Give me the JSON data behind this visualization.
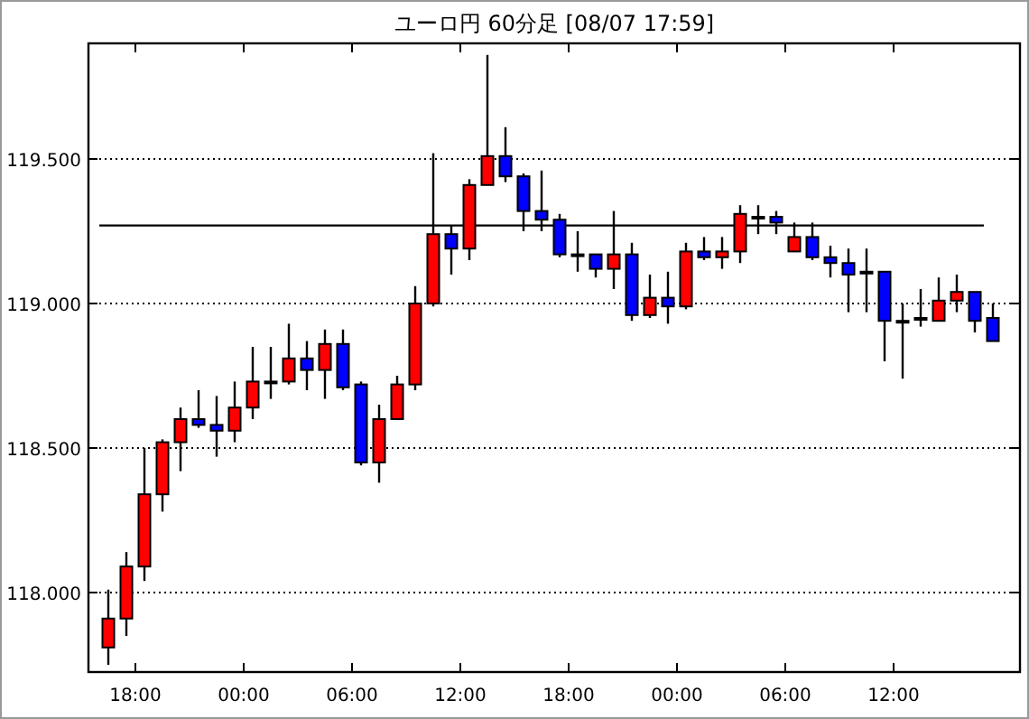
{
  "chart_data": {
    "type": "candlestick",
    "title": "ユーロ円 60分足 [08/07 17:59]",
    "x": [
      "--08-05T16:30",
      "--08-05T17:30",
      "--08-05T18:30",
      "--08-05T19:30",
      "--08-05T20:30",
      "--08-05T21:30",
      "--08-05T22:30",
      "--08-05T23:30",
      "--08-06T00:30",
      "--08-06T01:30",
      "--08-06T02:30",
      "--08-06T03:30",
      "--08-06T04:30",
      "--08-06T05:30",
      "--08-06T06:30",
      "--08-06T07:30",
      "--08-06T08:30",
      "--08-06T09:30",
      "--08-06T10:30",
      "--08-06T11:30",
      "--08-06T12:30",
      "--08-06T13:30",
      "--08-06T14:30",
      "--08-06T15:30",
      "--08-06T16:30",
      "--08-06T17:30",
      "--08-06T18:30",
      "--08-06T19:30",
      "--08-06T20:30",
      "--08-06T21:30",
      "--08-06T22:30",
      "--08-06T23:30",
      "--08-07T00:30",
      "--08-07T01:30",
      "--08-07T02:30",
      "--08-07T03:30",
      "--08-07T04:30",
      "--08-07T05:30",
      "--08-07T06:30",
      "--08-07T07:30",
      "--08-07T08:30",
      "--08-07T09:30",
      "--08-07T10:30",
      "--08-07T11:30",
      "--08-07T12:30",
      "--08-07T13:30",
      "--08-07T14:30",
      "--08-07T15:30",
      "--08-07T16:30",
      "--08-07T17:30"
    ],
    "ohlc": [
      [
        117.81,
        118.01,
        117.75,
        117.91
      ],
      [
        117.91,
        118.14,
        117.85,
        118.09
      ],
      [
        118.09,
        118.5,
        118.04,
        118.34
      ],
      [
        118.34,
        118.53,
        118.28,
        118.52
      ],
      [
        118.52,
        118.64,
        118.42,
        118.6
      ],
      [
        118.6,
        118.7,
        118.57,
        118.58
      ],
      [
        118.58,
        118.68,
        118.47,
        118.56
      ],
      [
        118.56,
        118.73,
        118.52,
        118.64
      ],
      [
        118.64,
        118.85,
        118.6,
        118.73
      ],
      [
        118.73,
        118.85,
        118.67,
        118.73
      ],
      [
        118.73,
        118.93,
        118.72,
        118.81
      ],
      [
        118.81,
        118.87,
        118.7,
        118.77
      ],
      [
        118.77,
        118.91,
        118.67,
        118.86
      ],
      [
        118.86,
        118.91,
        118.7,
        118.71
      ],
      [
        118.72,
        118.73,
        118.44,
        118.45
      ],
      [
        118.45,
        118.65,
        118.38,
        118.6
      ],
      [
        118.6,
        118.75,
        118.6,
        118.72
      ],
      [
        118.72,
        119.06,
        118.7,
        119.0
      ],
      [
        119.0,
        119.52,
        118.99,
        119.24
      ],
      [
        119.24,
        119.27,
        119.1,
        119.19
      ],
      [
        119.19,
        119.43,
        119.15,
        119.41
      ],
      [
        119.41,
        119.86,
        119.41,
        119.51
      ],
      [
        119.51,
        119.61,
        119.42,
        119.44
      ],
      [
        119.44,
        119.45,
        119.25,
        119.32
      ],
      [
        119.32,
        119.46,
        119.25,
        119.29
      ],
      [
        119.29,
        119.31,
        119.16,
        119.17
      ],
      [
        119.17,
        119.25,
        119.11,
        119.17
      ],
      [
        119.17,
        119.17,
        119.09,
        119.12
      ],
      [
        119.12,
        119.32,
        119.05,
        119.17
      ],
      [
        119.17,
        119.21,
        118.94,
        118.96
      ],
      [
        118.96,
        119.1,
        118.95,
        119.02
      ],
      [
        119.02,
        119.11,
        118.93,
        118.99
      ],
      [
        118.99,
        119.21,
        118.98,
        119.18
      ],
      [
        119.18,
        119.23,
        119.15,
        119.16
      ],
      [
        119.16,
        119.23,
        119.12,
        119.18
      ],
      [
        119.18,
        119.34,
        119.14,
        119.31
      ],
      [
        119.3,
        119.34,
        119.24,
        119.3
      ],
      [
        119.3,
        119.32,
        119.24,
        119.28
      ],
      [
        119.18,
        119.28,
        119.18,
        119.23
      ],
      [
        119.23,
        119.28,
        119.15,
        119.16
      ],
      [
        119.16,
        119.2,
        119.09,
        119.14
      ],
      [
        119.14,
        119.19,
        118.97,
        119.1
      ],
      [
        119.11,
        119.19,
        118.97,
        119.11
      ],
      [
        119.11,
        119.11,
        118.8,
        118.94
      ],
      [
        118.94,
        119.0,
        118.74,
        118.94
      ],
      [
        118.95,
        119.05,
        118.92,
        118.95
      ],
      [
        118.94,
        119.09,
        118.94,
        119.01
      ],
      [
        119.01,
        119.1,
        118.97,
        119.04
      ],
      [
        119.04,
        119.04,
        118.9,
        118.94
      ],
      [
        118.95,
        119.0,
        118.87,
        118.87
      ]
    ],
    "colors": [
      "#ff0000",
      "#ff0000",
      "#ff0000",
      "#ff0000",
      "#ff0000",
      "#0000ff",
      "#0000ff",
      "#ff0000",
      "#ff0000",
      "#000000",
      "#ff0000",
      "#0000ff",
      "#ff0000",
      "#0000ff",
      "#0000ff",
      "#ff0000",
      "#ff0000",
      "#ff0000",
      "#ff0000",
      "#0000ff",
      "#ff0000",
      "#ff0000",
      "#0000ff",
      "#0000ff",
      "#0000ff",
      "#0000ff",
      "#000000",
      "#0000ff",
      "#ff0000",
      "#0000ff",
      "#ff0000",
      "#0000ff",
      "#ff0000",
      "#0000ff",
      "#ff0000",
      "#ff0000",
      "#000000",
      "#0000ff",
      "#ff0000",
      "#0000ff",
      "#0000ff",
      "#0000ff",
      "#000000",
      "#0000ff",
      "#000000",
      "#000000",
      "#ff0000",
      "#ff0000",
      "#0000ff",
      "#0000ff"
    ],
    "xlim": [
      "--08-05T15:24",
      "--08-07T19:00"
    ],
    "xticks": [
      {
        "value": "--08-05T18:00",
        "label": "18:00"
      },
      {
        "value": "--08-06T00:00",
        "label": "00:00"
      },
      {
        "value": "--08-06T06:00",
        "label": "06:00"
      },
      {
        "value": "--08-06T12:00",
        "label": "12:00"
      },
      {
        "value": "--08-06T18:00",
        "label": "18:00"
      },
      {
        "value": "--08-07T00:00",
        "label": "00:00"
      },
      {
        "value": "--08-07T06:00",
        "label": "06:00"
      },
      {
        "value": "--08-07T12:00",
        "label": "12:00"
      }
    ],
    "ylim": [
      117.725,
      119.9
    ],
    "yticks": [
      {
        "value": 118,
        "label": "118.000"
      },
      {
        "value": 118.5,
        "label": "118.500"
      },
      {
        "value": 119,
        "label": "119.000"
      },
      {
        "value": 119.5,
        "label": "119.500"
      }
    ],
    "grid": "y",
    "ref_lines": [
      {
        "axis": "y",
        "value": 119.27,
        "color": "#000000",
        "line_style": "solid"
      }
    ]
  }
}
